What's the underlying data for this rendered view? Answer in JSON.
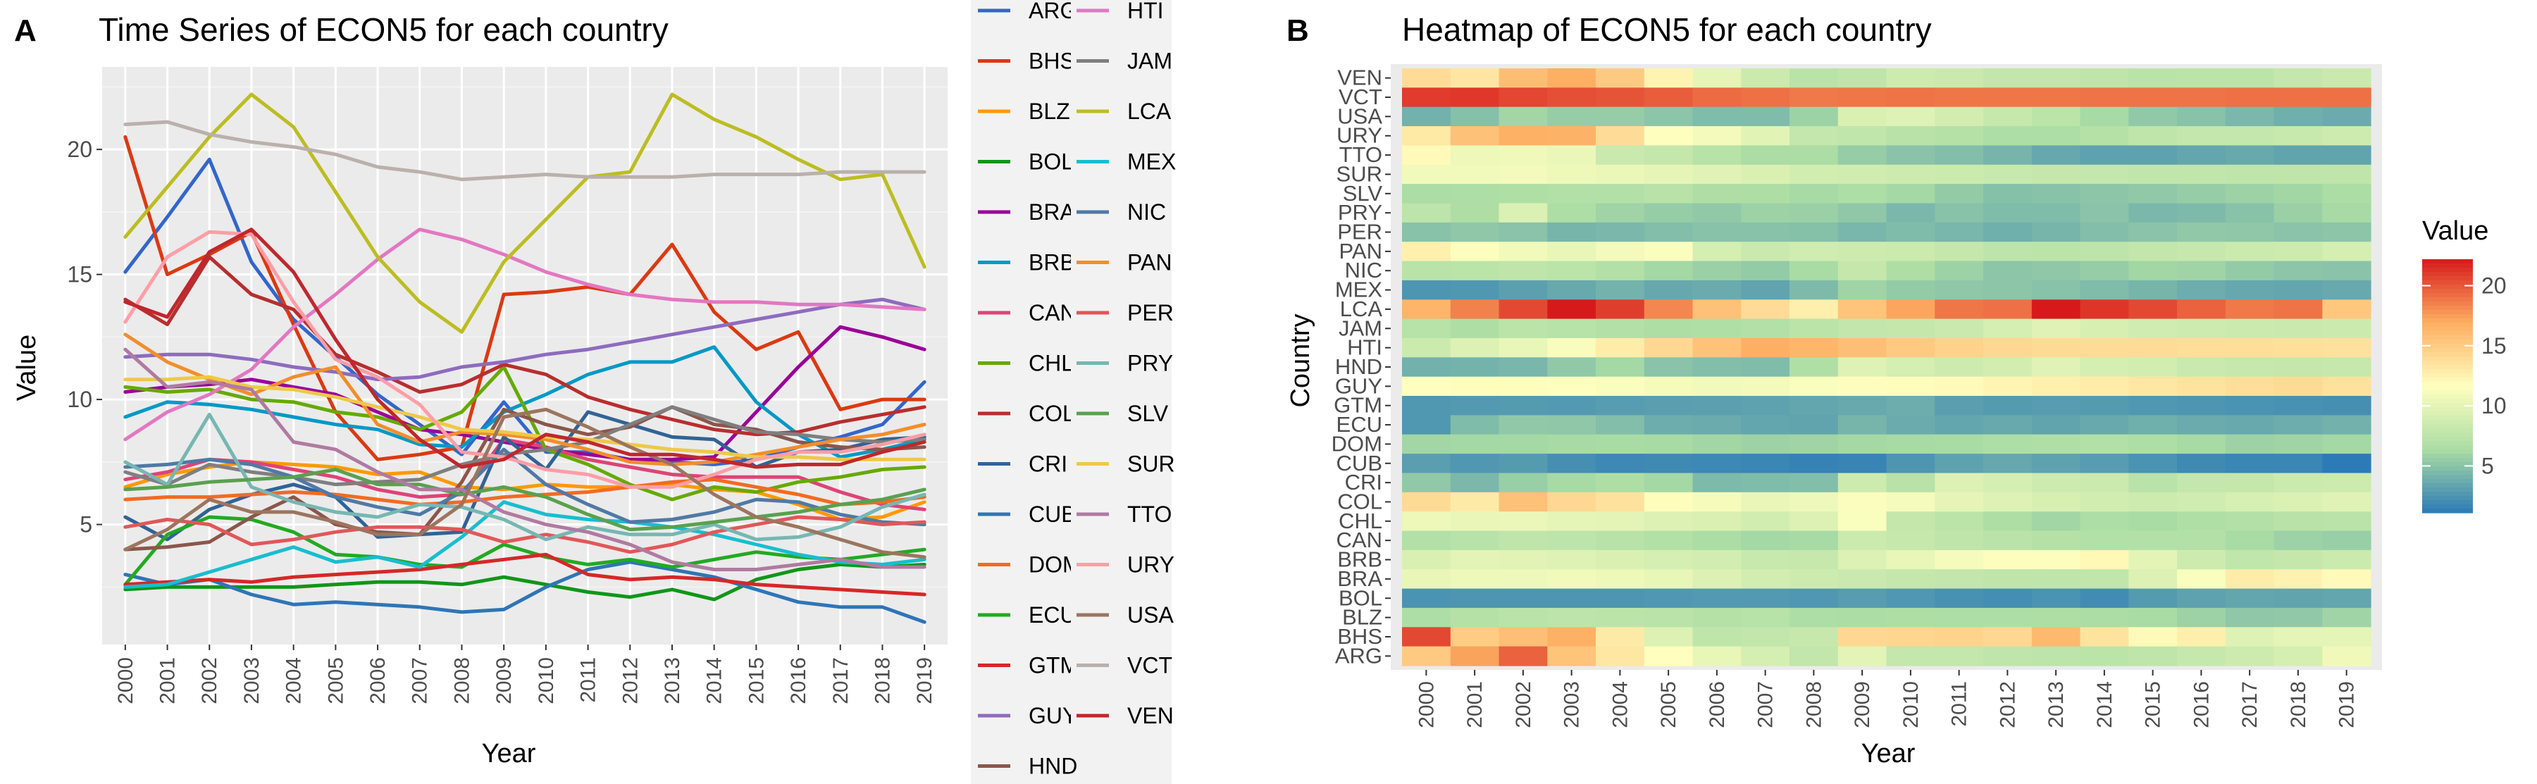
{
  "colors": {
    "panel_bg": "#EBEBEB",
    "grid_major": "#FFFFFF",
    "grid_minor": "#F5F5F5",
    "text": "#000000",
    "tick_text": "#4D4D4D",
    "heat_scale": [
      "#2C7BB6",
      "#ABDDA4",
      "#FFFFBF",
      "#FDAE61",
      "#D7191C"
    ]
  },
  "chart_data": [
    {
      "type": "line",
      "panel_tag": "A",
      "title": "Time Series of ECON5 for each country",
      "xlabel": "Year",
      "ylabel": "Value",
      "x": [
        2000,
        2001,
        2002,
        2003,
        2004,
        2005,
        2006,
        2007,
        2008,
        2009,
        2010,
        2011,
        2012,
        2013,
        2014,
        2015,
        2016,
        2017,
        2018,
        2019
      ],
      "x_tick_labels": [
        "2000",
        "2001",
        "2002",
        "2003",
        "2004",
        "2005",
        "2006",
        "2007",
        "2008",
        "2009",
        "2010",
        "2011",
        "2012",
        "2013",
        "2014",
        "2015",
        "2016",
        "2017",
        "2018",
        "2019"
      ],
      "y_ticks": [
        5,
        10,
        15,
        20
      ],
      "y_tick_labels": [
        "5",
        "10",
        "15",
        "20"
      ],
      "ylim": [
        0.2,
        23.3
      ],
      "grid": true,
      "legend_position": "right, 2 columns",
      "series": [
        {
          "name": "ARG",
          "color": "#3366CC",
          "values": [
            15.1,
            17.3,
            19.6,
            15.5,
            13.2,
            11.7,
            10.2,
            9.0,
            7.8,
            9.9,
            7.9,
            7.9,
            7.6,
            7.5,
            7.4,
            7.6,
            8.1,
            8.5,
            9.0,
            10.7
          ]
        },
        {
          "name": "BHS",
          "color": "#DC3912",
          "values": [
            20.5,
            15.0,
            15.8,
            16.7,
            13.0,
            9.5,
            7.6,
            7.8,
            8.1,
            14.2,
            14.3,
            14.5,
            14.2,
            16.2,
            13.5,
            12.0,
            12.7,
            9.6,
            10.0,
            10.0
          ]
        },
        {
          "name": "BLZ",
          "color": "#FF9900",
          "values": [
            6.5,
            7.0,
            7.3,
            7.5,
            7.4,
            7.3,
            7.0,
            7.1,
            6.5,
            6.4,
            6.6,
            6.5,
            6.5,
            6.6,
            6.4,
            6.3,
            5.8,
            5.2,
            5.3,
            5.9
          ]
        },
        {
          "name": "BOL",
          "color": "#109618",
          "values": [
            2.4,
            2.5,
            2.5,
            2.5,
            2.5,
            2.6,
            2.7,
            2.7,
            2.6,
            2.9,
            2.6,
            2.3,
            2.1,
            2.4,
            2.0,
            2.8,
            3.2,
            3.4,
            3.3,
            3.4
          ]
        },
        {
          "name": "BRA",
          "color": "#990099",
          "values": [
            10.3,
            10.5,
            10.6,
            10.8,
            10.5,
            10.2,
            9.5,
            8.8,
            8.6,
            8.3,
            8.0,
            7.8,
            7.6,
            7.6,
            7.7,
            9.5,
            11.3,
            12.9,
            12.5,
            12.0
          ]
        },
        {
          "name": "BRB",
          "color": "#0099C6",
          "values": [
            9.3,
            9.9,
            9.8,
            9.6,
            9.3,
            9.0,
            8.8,
            8.2,
            8.1,
            9.5,
            10.2,
            11.0,
            11.5,
            11.5,
            12.1,
            9.9,
            8.6,
            7.7,
            8.0,
            8.4
          ]
        },
        {
          "name": "CAN",
          "color": "#DD4477",
          "values": [
            6.8,
            7.1,
            7.6,
            7.5,
            7.2,
            6.9,
            6.4,
            6.1,
            6.2,
            8.4,
            8.1,
            7.6,
            7.3,
            7.0,
            6.9,
            6.9,
            6.9,
            6.3,
            5.8,
            5.6
          ]
        },
        {
          "name": "CHL",
          "color": "#66AA00",
          "values": [
            10.5,
            10.3,
            10.4,
            10.0,
            9.9,
            9.5,
            9.3,
            8.8,
            9.5,
            11.3,
            8.0,
            7.4,
            6.6,
            6.0,
            6.5,
            6.3,
            6.7,
            6.9,
            7.2,
            7.3
          ]
        },
        {
          "name": "COL",
          "color": "#B82E2E",
          "values": [
            14.0,
            13.0,
            15.7,
            14.2,
            13.6,
            11.8,
            11.1,
            10.3,
            10.6,
            11.4,
            11.0,
            10.1,
            9.6,
            9.2,
            8.8,
            8.6,
            8.7,
            9.1,
            9.4,
            9.7
          ]
        },
        {
          "name": "CRI",
          "color": "#316395",
          "values": [
            5.3,
            4.4,
            5.6,
            6.2,
            6.6,
            6.1,
            4.5,
            4.6,
            4.7,
            8.5,
            7.2,
            9.5,
            9.0,
            8.5,
            8.4,
            7.3,
            7.9,
            8.0,
            8.4,
            8.5
          ]
        },
        {
          "name": "CUB",
          "color": "#2E75B6",
          "values": [
            3.0,
            2.6,
            2.8,
            2.2,
            1.8,
            1.9,
            1.8,
            1.7,
            1.5,
            1.6,
            2.5,
            3.2,
            3.5,
            3.2,
            2.9,
            2.4,
            1.9,
            1.7,
            1.7,
            1.1
          ]
        },
        {
          "name": "DOM",
          "color": "#F26B21",
          "values": [
            6.0,
            6.1,
            6.1,
            6.2,
            6.3,
            6.2,
            6.0,
            5.8,
            5.9,
            6.1,
            6.2,
            6.3,
            6.5,
            6.7,
            6.8,
            6.5,
            6.2,
            5.8,
            5.9,
            6.1
          ]
        },
        {
          "name": "ECU",
          "color": "#22AA22",
          "values": [
            2.6,
            4.6,
            5.3,
            5.2,
            4.7,
            3.8,
            3.7,
            3.4,
            3.3,
            4.2,
            3.7,
            3.4,
            3.6,
            3.3,
            3.6,
            3.9,
            3.7,
            3.6,
            3.8,
            4.0
          ]
        },
        {
          "name": "GTM",
          "color": "#D62728",
          "values": [
            2.6,
            2.7,
            2.8,
            2.7,
            2.9,
            3.0,
            3.1,
            3.2,
            3.4,
            3.6,
            3.8,
            3.0,
            2.8,
            2.9,
            2.8,
            2.6,
            2.5,
            2.4,
            2.3,
            2.2
          ]
        },
        {
          "name": "GUY",
          "color": "#8E6BBF",
          "values": [
            11.7,
            11.8,
            11.8,
            11.6,
            11.3,
            11.1,
            10.8,
            10.9,
            11.3,
            11.5,
            11.8,
            12.0,
            12.3,
            12.6,
            12.9,
            13.2,
            13.5,
            13.8,
            14.0,
            13.6
          ]
        },
        {
          "name": "HND",
          "color": "#8C564B",
          "values": [
            4.0,
            4.1,
            4.3,
            5.3,
            6.1,
            5.0,
            4.7,
            4.6,
            6.7,
            9.6,
            9.0,
            8.6,
            8.9,
            9.7,
            9.0,
            8.8,
            8.3,
            8.1,
            8.0,
            8.1
          ]
        },
        {
          "name": "HTI",
          "color": "#E377C2",
          "values": [
            8.4,
            9.5,
            10.2,
            11.2,
            12.9,
            14.2,
            15.6,
            16.8,
            16.4,
            15.8,
            15.1,
            14.6,
            14.2,
            14.0,
            13.9,
            13.9,
            13.8,
            13.8,
            13.7,
            13.6
          ]
        },
        {
          "name": "JAM",
          "color": "#7F7F7F",
          "values": [
            7.1,
            6.6,
            7.4,
            7.1,
            6.9,
            6.6,
            6.7,
            6.8,
            7.4,
            7.8,
            8.0,
            8.3,
            9.0,
            9.7,
            9.2,
            8.7,
            8.6,
            8.4,
            8.3,
            8.4
          ]
        },
        {
          "name": "LCA",
          "color": "#BCBD22",
          "values": [
            16.5,
            18.5,
            20.5,
            22.2,
            20.9,
            18.3,
            15.7,
            13.9,
            12.7,
            15.5,
            17.2,
            18.9,
            19.1,
            22.2,
            21.2,
            20.5,
            19.6,
            18.8,
            19.0,
            15.3
          ]
        },
        {
          "name": "MEX",
          "color": "#17BECF",
          "values": [
            2.5,
            2.6,
            3.1,
            3.6,
            4.1,
            3.5,
            3.7,
            3.3,
            4.5,
            5.9,
            5.4,
            5.2,
            5.1,
            4.9,
            4.6,
            4.2,
            3.8,
            3.5,
            3.4,
            3.6
          ]
        },
        {
          "name": "NIC",
          "color": "#5079A5",
          "values": [
            7.3,
            7.4,
            7.6,
            7.4,
            6.9,
            6.1,
            5.7,
            5.4,
            6.3,
            8.0,
            6.6,
            5.8,
            5.1,
            5.2,
            5.5,
            6.0,
            5.9,
            5.4,
            5.1,
            5.0
          ]
        },
        {
          "name": "PAN",
          "color": "#F28E2B",
          "values": [
            12.6,
            11.5,
            10.8,
            10.2,
            10.9,
            11.3,
            9.0,
            8.3,
            8.7,
            8.6,
            8.4,
            8.0,
            7.5,
            7.4,
            7.5,
            7.8,
            8.1,
            8.4,
            8.6,
            9.0
          ]
        },
        {
          "name": "PER",
          "color": "#E15759",
          "values": [
            4.9,
            5.2,
            5.0,
            4.2,
            4.4,
            4.7,
            4.9,
            4.9,
            4.8,
            4.3,
            4.6,
            4.3,
            3.9,
            4.2,
            4.7,
            5.0,
            5.3,
            5.2,
            5.0,
            5.1
          ]
        },
        {
          "name": "PRY",
          "color": "#76B7B2",
          "values": [
            7.5,
            6.6,
            9.4,
            6.5,
            5.9,
            5.5,
            5.3,
            5.8,
            5.7,
            5.2,
            4.4,
            4.9,
            4.6,
            4.6,
            5.0,
            4.4,
            4.5,
            4.9,
            5.7,
            6.2
          ]
        },
        {
          "name": "SLV",
          "color": "#59A14F",
          "values": [
            6.4,
            6.5,
            6.7,
            6.8,
            6.9,
            7.2,
            6.6,
            6.6,
            6.2,
            6.5,
            6.1,
            5.4,
            4.8,
            4.9,
            5.1,
            5.3,
            5.5,
            5.8,
            6.0,
            6.4
          ]
        },
        {
          "name": "SUR",
          "color": "#EDC948",
          "values": [
            10.8,
            10.8,
            10.9,
            10.5,
            10.4,
            10.1,
            9.7,
            9.3,
            8.8,
            8.7,
            8.5,
            8.4,
            8.2,
            8.0,
            7.9,
            7.7,
            7.7,
            7.6,
            7.6,
            7.6
          ]
        },
        {
          "name": "TTO",
          "color": "#B07AA1",
          "values": [
            12.0,
            10.5,
            10.7,
            10.4,
            8.3,
            8.0,
            7.1,
            6.4,
            6.4,
            5.5,
            5.0,
            4.7,
            4.2,
            3.5,
            3.2,
            3.2,
            3.4,
            3.6,
            3.3,
            3.3
          ]
        },
        {
          "name": "URY",
          "color": "#FF9DA7",
          "values": [
            13.1,
            15.7,
            16.7,
            16.6,
            13.9,
            11.6,
            10.9,
            9.8,
            7.9,
            7.7,
            7.2,
            7.0,
            6.5,
            6.5,
            7.0,
            7.6,
            7.9,
            7.9,
            8.2,
            8.6
          ]
        },
        {
          "name": "USA",
          "color": "#9C755F",
          "values": [
            4.0,
            4.8,
            6.0,
            5.5,
            5.5,
            5.1,
            4.6,
            4.6,
            5.8,
            9.3,
            9.6,
            8.9,
            8.1,
            7.4,
            6.2,
            5.3,
            4.9,
            4.4,
            3.9,
            3.7
          ]
        },
        {
          "name": "VCT",
          "color": "#BAB0AC",
          "values": [
            21.0,
            21.1,
            20.6,
            20.3,
            20.1,
            19.8,
            19.3,
            19.1,
            18.8,
            18.9,
            19.0,
            18.9,
            18.9,
            18.9,
            19.0,
            19.0,
            19.0,
            19.1,
            19.1,
            19.1
          ]
        },
        {
          "name": "VEN",
          "color": "#C0272D",
          "values": [
            13.9,
            13.3,
            15.9,
            16.8,
            15.1,
            12.4,
            10.0,
            8.4,
            7.3,
            7.6,
            8.6,
            8.3,
            7.8,
            7.8,
            7.6,
            7.3,
            7.4,
            7.4,
            7.9,
            8.3
          ]
        }
      ]
    },
    {
      "type": "heatmap",
      "panel_tag": "B",
      "title": "Heatmap of ECON5 for each country",
      "xlabel": "Year",
      "ylabel": "Country",
      "x_tick_labels": [
        "2000",
        "2001",
        "2002",
        "2003",
        "2004",
        "2005",
        "2006",
        "2007",
        "2008",
        "2009",
        "2010",
        "2011",
        "2012",
        "2013",
        "2014",
        "2015",
        "2016",
        "2017",
        "2018",
        "2019"
      ],
      "y_tick_labels_top_to_bottom": [
        "VEN",
        "VCT",
        "USA",
        "URY",
        "TTO",
        "SUR",
        "SLV",
        "PRY",
        "PER",
        "PAN",
        "NIC",
        "MEX",
        "LCA",
        "JAM",
        "HTI",
        "HND",
        "GUY",
        "GTM",
        "ECU",
        "DOM",
        "CUB",
        "CRI",
        "COL",
        "CHL",
        "CAN",
        "BRB",
        "BRA",
        "BOL",
        "BLZ",
        "BHS",
        "ARG"
      ],
      "legend_title": "Value",
      "legend_ticks": [
        5,
        10,
        15,
        20
      ],
      "value_range": [
        1.1,
        22.2
      ]
    }
  ]
}
